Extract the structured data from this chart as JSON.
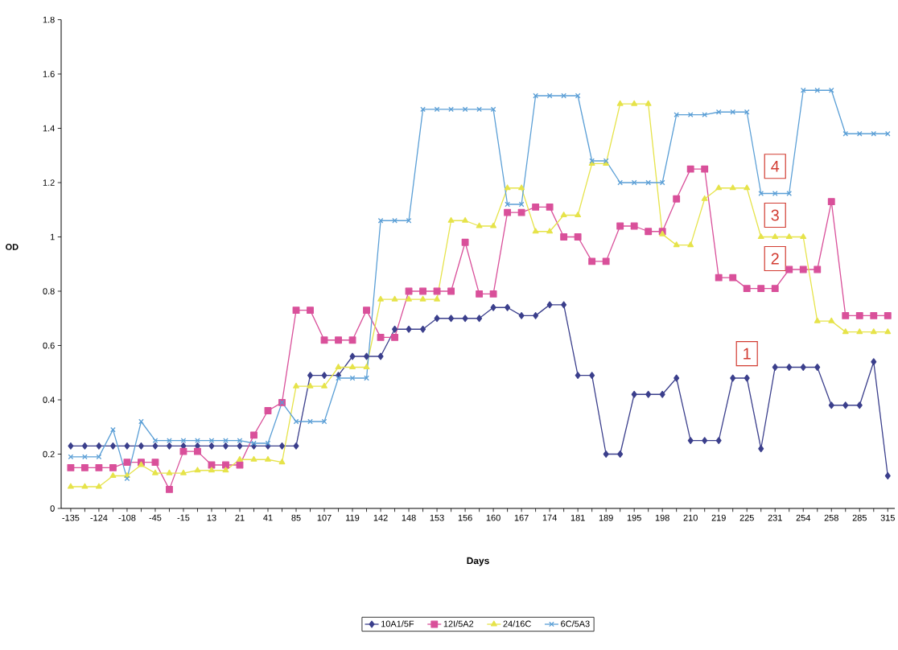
{
  "chart_data": {
    "type": "line",
    "xlabel": "Days",
    "ylabel": "OD",
    "categories": [
      "-135",
      null,
      "-124",
      null,
      "-108",
      null,
      "-45",
      null,
      "-15",
      null,
      "13",
      null,
      "21",
      null,
      "41",
      null,
      "85",
      null,
      "107",
      null,
      "119",
      null,
      "142",
      null,
      "148",
      null,
      "153",
      null,
      "156",
      null,
      "160",
      null,
      "167",
      null,
      "174",
      null,
      "181",
      null,
      "189",
      null,
      "195",
      null,
      "198",
      null,
      "210",
      null,
      "219",
      null,
      "225",
      null,
      "231",
      null,
      "254",
      null,
      "258",
      null,
      "285",
      null,
      "315"
    ],
    "series": [
      {
        "name": "10A1/5F",
        "color": "#3b3f8c",
        "marker": "diamond",
        "values": [
          0.23,
          0.23,
          0.23,
          0.23,
          0.23,
          0.23,
          0.23,
          0.23,
          0.23,
          0.23,
          0.23,
          0.23,
          0.23,
          0.23,
          0.23,
          0.23,
          0.23,
          0.49,
          0.49,
          0.49,
          0.56,
          0.56,
          0.56,
          0.66,
          0.66,
          0.66,
          0.7,
          0.7,
          0.7,
          0.7,
          0.74,
          0.74,
          0.71,
          0.71,
          0.75,
          0.75,
          0.49,
          0.49,
          0.2,
          0.2,
          0.42,
          0.42,
          0.42,
          0.48,
          0.25,
          0.25,
          0.25,
          0.48,
          0.48,
          0.22,
          0.52,
          0.52,
          0.52,
          0.52,
          0.38,
          0.38,
          0.38,
          0.54,
          0.12
        ]
      },
      {
        "name": "12I/5A2",
        "color": "#d9509a",
        "marker": "square",
        "values": [
          0.15,
          0.15,
          0.15,
          0.15,
          0.17,
          0.17,
          0.17,
          0.07,
          0.21,
          0.21,
          0.16,
          0.16,
          0.16,
          0.27,
          0.36,
          0.39,
          0.73,
          0.73,
          0.62,
          0.62,
          0.62,
          0.73,
          0.63,
          0.63,
          0.8,
          0.8,
          0.8,
          0.8,
          0.98,
          0.79,
          0.79,
          1.09,
          1.09,
          1.11,
          1.11,
          1.0,
          1.0,
          0.91,
          0.91,
          1.04,
          1.04,
          1.02,
          1.02,
          1.14,
          1.25,
          1.25,
          0.85,
          0.85,
          0.81,
          0.81,
          0.81,
          0.88,
          0.88,
          0.88,
          1.13,
          0.71,
          0.71,
          0.71,
          0.71
        ]
      },
      {
        "name": "24/16C",
        "color": "#e6e34a",
        "marker": "triangle",
        "values": [
          0.08,
          0.08,
          0.08,
          0.12,
          0.12,
          0.16,
          0.13,
          0.13,
          0.13,
          0.14,
          0.14,
          0.14,
          0.18,
          0.18,
          0.18,
          0.17,
          0.45,
          0.45,
          0.45,
          0.52,
          0.52,
          0.52,
          0.77,
          0.77,
          0.77,
          0.77,
          0.77,
          1.06,
          1.06,
          1.04,
          1.04,
          1.18,
          1.18,
          1.02,
          1.02,
          1.08,
          1.08,
          1.27,
          1.27,
          1.49,
          1.49,
          1.49,
          1.01,
          0.97,
          0.97,
          1.14,
          1.18,
          1.18,
          1.18,
          1.0,
          1.0,
          1.0,
          1.0,
          0.69,
          0.69,
          0.65,
          0.65,
          0.65,
          0.65
        ]
      },
      {
        "name": "6C/5A3",
        "color": "#5b9fd6",
        "marker": "cross",
        "values": [
          0.19,
          0.19,
          0.19,
          0.29,
          0.11,
          0.32,
          0.25,
          0.25,
          0.25,
          0.25,
          0.25,
          0.25,
          0.25,
          0.24,
          0.24,
          0.39,
          0.32,
          0.32,
          0.32,
          0.48,
          0.48,
          0.48,
          1.06,
          1.06,
          1.06,
          1.47,
          1.47,
          1.47,
          1.47,
          1.47,
          1.47,
          1.12,
          1.12,
          1.52,
          1.52,
          1.52,
          1.52,
          1.28,
          1.28,
          1.2,
          1.2,
          1.2,
          1.2,
          1.45,
          1.45,
          1.45,
          1.46,
          1.46,
          1.46,
          1.16,
          1.16,
          1.16,
          1.54,
          1.54,
          1.54,
          1.38,
          1.38,
          1.38,
          1.38
        ]
      }
    ],
    "ylim": [
      0,
      1.8
    ],
    "yticks": [
      0,
      0.2,
      0.4,
      0.6,
      0.8,
      1,
      1.2,
      1.4,
      1.6,
      1.8
    ],
    "legend": "bottom",
    "annotations": [
      {
        "text": "1",
        "x": "225",
        "y": 0.57
      },
      {
        "text": "2",
        "x": "231",
        "y": 0.92
      },
      {
        "text": "3",
        "x": "231",
        "y": 1.08
      },
      {
        "text": "4",
        "x": "231",
        "y": 1.26
      }
    ]
  }
}
